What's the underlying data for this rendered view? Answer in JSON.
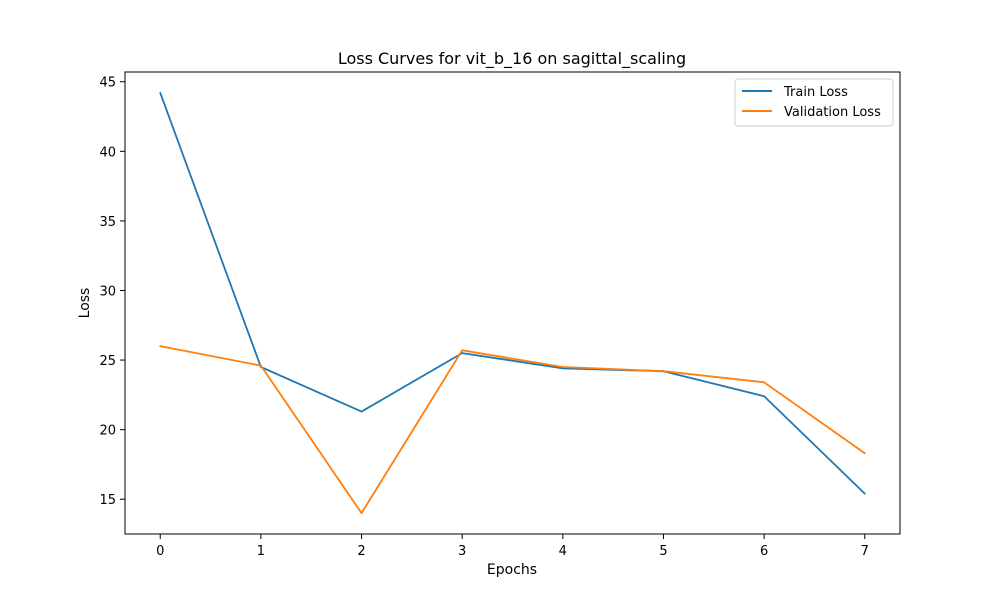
{
  "chart_data": {
    "type": "line",
    "title": "Loss Curves for vit_b_16 on sagittal_scaling",
    "xlabel": "Epochs",
    "ylabel": "Loss",
    "x": [
      0,
      1,
      2,
      3,
      4,
      5,
      6,
      7
    ],
    "xticks": [
      "0",
      "1",
      "2",
      "3",
      "4",
      "5",
      "6",
      "7"
    ],
    "yticks": [
      "15",
      "20",
      "25",
      "30",
      "35",
      "40",
      "45"
    ],
    "xlim": [
      -0.35,
      7.35
    ],
    "ylim": [
      12.5,
      45.7
    ],
    "grid": false,
    "legend_position": "top-right",
    "series": [
      {
        "name": "Train Loss",
        "color": "#1f77b4",
        "values": [
          44.2,
          24.5,
          21.3,
          25.5,
          24.4,
          24.2,
          22.4,
          15.4
        ]
      },
      {
        "name": "Validation Loss",
        "color": "#ff7f0e",
        "values": [
          26.0,
          24.6,
          14.0,
          25.7,
          24.5,
          24.2,
          23.4,
          18.3
        ]
      }
    ]
  }
}
